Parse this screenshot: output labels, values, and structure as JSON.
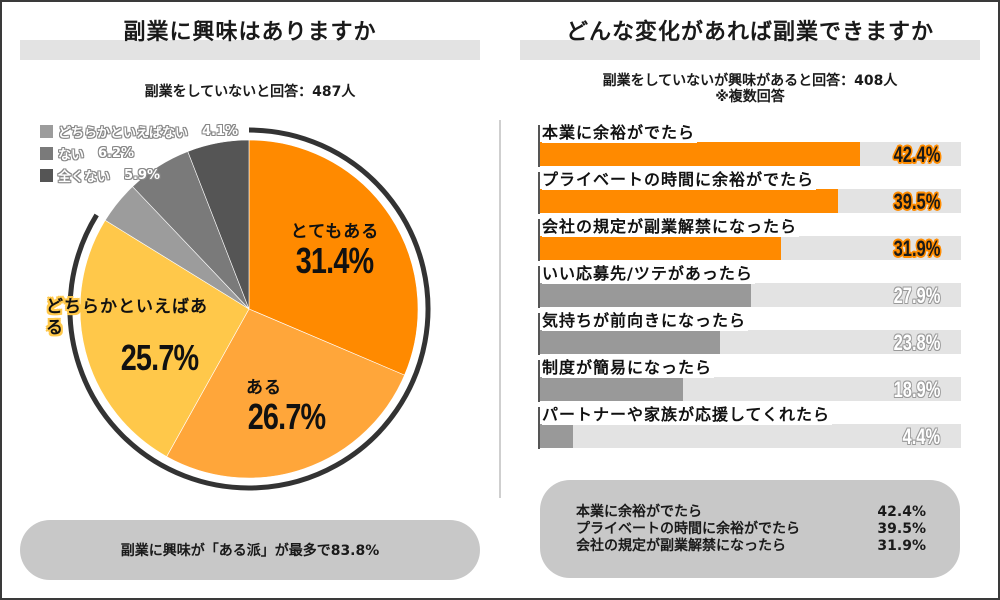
{
  "left_panel": {
    "title": "副業に興味はありますか",
    "subtitle": "副業をしていないと回答：487人",
    "summary": "副業に興味が「ある派」が最多で83.8%"
  },
  "right_panel": {
    "title": "どんな変化があれば副業できますか",
    "subtitle_line1": "副業をしていないが興味があると回答：408人",
    "subtitle_line2": "※複数回答",
    "top3": [
      {
        "label": "本業に余裕がでたら",
        "value": "42.4%"
      },
      {
        "label": "プライベートの時間に余裕がでたら",
        "value": "39.5%"
      },
      {
        "label": "会社の規定が副業解禁になったら",
        "value": "31.9%"
      }
    ]
  },
  "colors": {
    "orange_dark": "#ff8a00",
    "orange_mid": "#ffa63a",
    "yellow": "#ffc84a",
    "gray_light": "#9c9c9c",
    "gray_mid": "#7a7a7a",
    "gray_dark": "#555555",
    "bar_gray": "#999999",
    "track": "#e3e3e3",
    "arc": "#333333"
  },
  "chart_data": [
    {
      "type": "pie",
      "title": "副業に興味はありますか",
      "subtitle": "副業をしていないと回答：487人",
      "start_angle": "12 o'clock, clockwise",
      "categories": [
        "とてもある",
        "ある",
        "どちらかといえばある",
        "どちらかといえばない",
        "ない",
        "全くない"
      ],
      "values": [
        31.4,
        26.7,
        25.7,
        4.1,
        6.2,
        5.9
      ],
      "value_labels": [
        "31.4%",
        "26.7%",
        "25.7%",
        "4.1%",
        "6.2%",
        "5.9%"
      ],
      "colors": [
        "#ff8a00",
        "#ffa63a",
        "#ffc84a",
        "#9c9c9c",
        "#7a7a7a",
        "#555555"
      ],
      "legend": [
        {
          "label": "どちらかといえばない",
          "value": "4.1%"
        },
        {
          "label": "ない",
          "value": "6.2%"
        },
        {
          "label": "全くない",
          "value": "5.9%"
        }
      ],
      "legend_position": "top-left",
      "annotation": "副業に興味が「ある派」が最多で83.8%",
      "highlight_arc_percent": 83.8
    },
    {
      "type": "bar",
      "orientation": "horizontal",
      "title": "どんな変化があれば副業できますか",
      "subtitle": "副業をしていないが興味があると回答：408人 ※複数回答",
      "categories": [
        "本業に余裕がでたら",
        "プライベートの時間に余裕がでたら",
        "会社の規定が副業解禁になったら",
        "いい応募先/ツテがあったら",
        "気持ちが前向きになったら",
        "制度が簡易になったら",
        "パートナーや家族が応援してくれたら"
      ],
      "values": [
        42.4,
        39.5,
        31.9,
        27.9,
        23.8,
        18.9,
        4.4
      ],
      "value_labels": [
        "42.4%",
        "39.5%",
        "31.9%",
        "27.9%",
        "23.8%",
        "18.9%",
        "4.4%"
      ],
      "highlighted": [
        true,
        true,
        true,
        false,
        false,
        false,
        false
      ],
      "xlim": [
        0,
        55.8
      ],
      "grid": false
    }
  ]
}
